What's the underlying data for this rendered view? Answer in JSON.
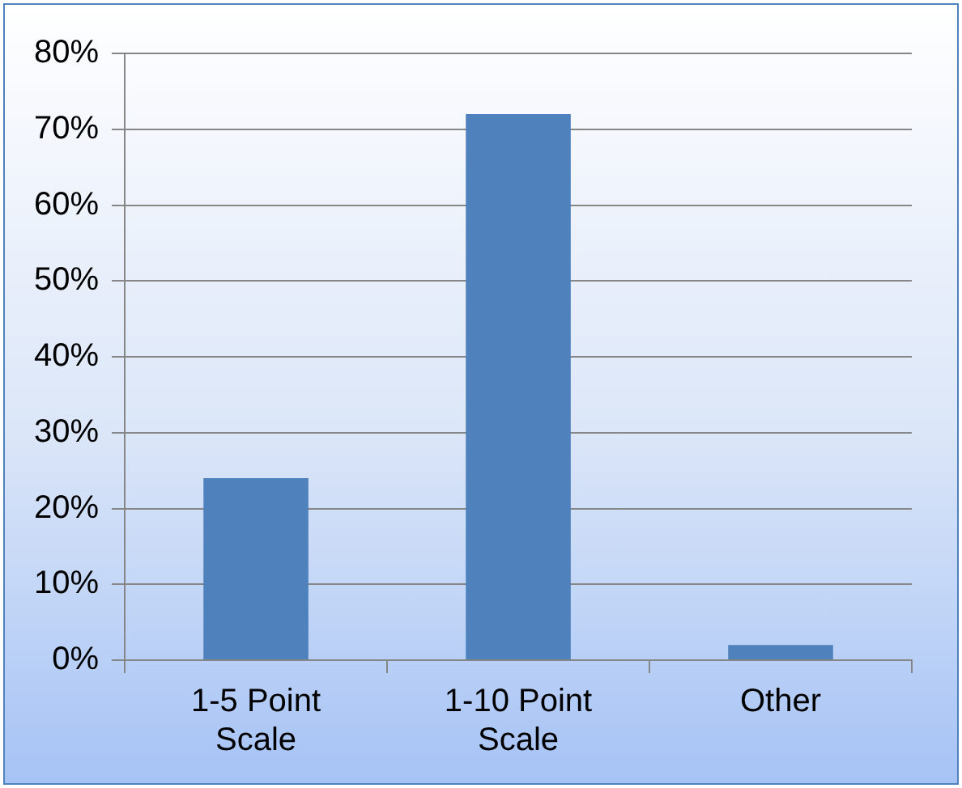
{
  "chart_data": {
    "type": "bar",
    "categories": [
      "1-5 Point Scale",
      "1-10 Point Scale",
      "Other"
    ],
    "values": [
      24,
      72,
      2
    ],
    "color": "#4f81bd",
    "ylim": [
      0,
      80
    ],
    "yticks": [
      {
        "value": 0,
        "label": "0%"
      },
      {
        "value": 10,
        "label": "10%"
      },
      {
        "value": 20,
        "label": "20%"
      },
      {
        "value": 30,
        "label": "30%"
      },
      {
        "value": 40,
        "label": "40%"
      },
      {
        "value": 50,
        "label": "50%"
      },
      {
        "value": 60,
        "label": "60%"
      },
      {
        "value": 70,
        "label": "70%"
      },
      {
        "value": 80,
        "label": "80%"
      }
    ],
    "grid": "y"
  }
}
